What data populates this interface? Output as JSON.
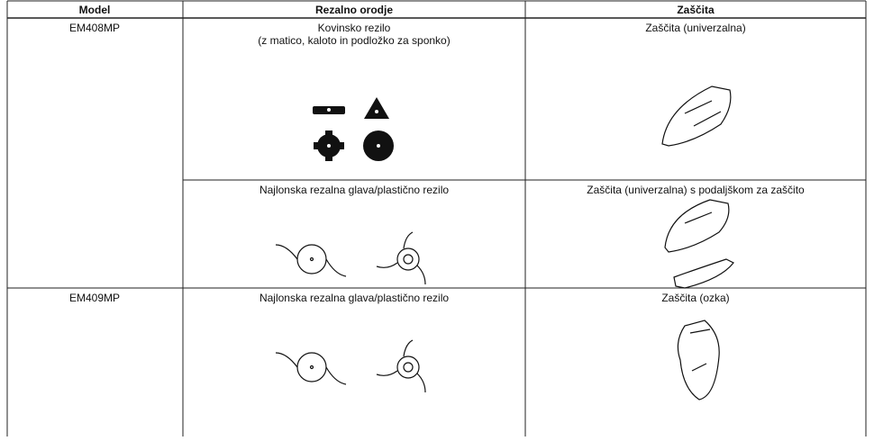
{
  "table": {
    "header": [
      "Model",
      "Rezalno orodje",
      "Zaščita"
    ],
    "rows": [
      {
        "model": "EM408MP",
        "tool": [
          "Kovinsko rezilo",
          "(z matico, kaloto in podložko za sponko)"
        ],
        "guard": "Zaščita (univerzalna)"
      },
      {
        "tool": [
          "Najlonska rezalna glava/plastično rezilo"
        ],
        "guard": "Zaščita (univerzalna) s podaljškom za zaščito"
      },
      {
        "model": "EM409MP",
        "tool": [
          "Najlonska rezalna glava/plastično rezilo"
        ],
        "guard": "Zaščita (ozka)"
      }
    ]
  }
}
